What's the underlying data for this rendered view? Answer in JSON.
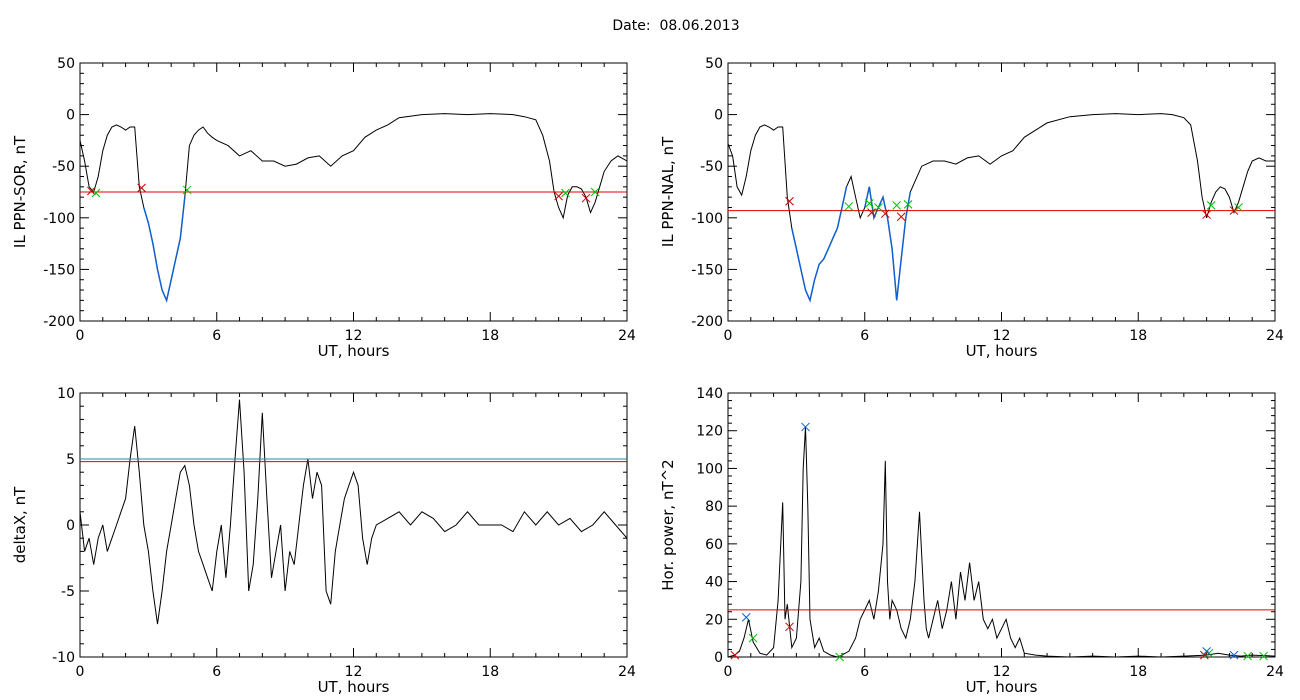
{
  "figure_title": "Date:  08.06.2013",
  "colors": {
    "signal": "#000000",
    "threshold": "#e00000",
    "threshold2": "#2a8aa0",
    "event_segment": "#1060d0",
    "marker_start": "#d00000",
    "marker_end": "#00c000",
    "marker_peak": "#1060d0"
  },
  "chart_data": [
    {
      "type": "line",
      "title": "",
      "xlabel": "UT, hours",
      "ylabel": "IL PPN-SOR, nT",
      "xlim": [
        0,
        24
      ],
      "ylim": [
        -200,
        50
      ],
      "xticks": [
        0,
        6,
        12,
        18,
        24
      ],
      "yticks": [
        -200,
        -150,
        -100,
        -50,
        0,
        50
      ],
      "threshold": -75,
      "series": [
        {
          "x": [
            0,
            0.2,
            0.4,
            0.6,
            0.8,
            1,
            1.2,
            1.4,
            1.6,
            1.8,
            2,
            2.2,
            2.4,
            2.6,
            2.8,
            3,
            3.2,
            3.4,
            3.6,
            3.8,
            4,
            4.2,
            4.4,
            4.6,
            4.8,
            5,
            5.2,
            5.4,
            5.6,
            5.8,
            6,
            6.5,
            7,
            7.5,
            8,
            8.5,
            9,
            9.5,
            10,
            10.5,
            11,
            11.5,
            12,
            12.5,
            13,
            13.5,
            14,
            15,
            16,
            17,
            18,
            19,
            19.5,
            20,
            20.3,
            20.6,
            20.8,
            21,
            21.2,
            21.4,
            21.6,
            21.8,
            22,
            22.2,
            22.4,
            22.6,
            22.8,
            23,
            23.3,
            23.6,
            24
          ],
          "y": [
            -25,
            -45,
            -70,
            -75,
            -60,
            -35,
            -20,
            -12,
            -10,
            -12,
            -15,
            -12,
            -12,
            -70,
            -90,
            -105,
            -125,
            -150,
            -170,
            -180,
            -160,
            -140,
            -120,
            -80,
            -30,
            -20,
            -15,
            -12,
            -18,
            -22,
            -25,
            -30,
            -40,
            -35,
            -45,
            -45,
            -50,
            -48,
            -42,
            -40,
            -50,
            -40,
            -35,
            -22,
            -15,
            -10,
            -3,
            0,
            1,
            0,
            1,
            0,
            -2,
            -5,
            -20,
            -45,
            -75,
            -90,
            -100,
            -78,
            -70,
            -70,
            -72,
            -80,
            -95,
            -85,
            -70,
            -55,
            -45,
            -40,
            -45
          ]
        }
      ],
      "event_x_range": [
        [
          2.7,
          4.7
        ]
      ],
      "markers_start": [
        [
          0.5,
          -74
        ],
        [
          2.7,
          -71
        ],
        [
          21.0,
          -79
        ],
        [
          22.2,
          -81
        ]
      ],
      "markers_end": [
        [
          0.7,
          -76
        ],
        [
          4.7,
          -73
        ],
        [
          21.3,
          -76
        ],
        [
          22.6,
          -75
        ]
      ]
    },
    {
      "type": "line",
      "title": "",
      "xlabel": "UT, hours",
      "ylabel": "IL PPN-NAL, nT",
      "xlim": [
        0,
        24
      ],
      "ylim": [
        -200,
        50
      ],
      "xticks": [
        0,
        6,
        12,
        18,
        24
      ],
      "yticks": [
        -200,
        -150,
        -100,
        -50,
        0,
        50
      ],
      "threshold": -93,
      "series": [
        {
          "x": [
            0,
            0.2,
            0.4,
            0.6,
            0.8,
            1,
            1.2,
            1.4,
            1.6,
            1.8,
            2,
            2.2,
            2.4,
            2.6,
            2.8,
            3,
            3.2,
            3.4,
            3.6,
            3.8,
            4,
            4.2,
            4.4,
            4.6,
            4.8,
            5,
            5.2,
            5.4,
            5.6,
            5.8,
            6,
            6.2,
            6.4,
            6.6,
            6.8,
            7,
            7.2,
            7.4,
            7.6,
            7.8,
            8,
            8.5,
            9,
            9.5,
            10,
            10.5,
            11,
            11.5,
            12,
            12.5,
            13,
            13.5,
            14,
            15,
            16,
            17,
            18,
            19,
            19.5,
            20,
            20.3,
            20.6,
            20.8,
            21,
            21.2,
            21.4,
            21.6,
            21.8,
            22,
            22.2,
            22.4,
            22.6,
            22.8,
            23,
            23.3,
            23.6,
            24
          ],
          "y": [
            -28,
            -40,
            -70,
            -78,
            -60,
            -35,
            -20,
            -12,
            -10,
            -12,
            -15,
            -12,
            -12,
            -80,
            -110,
            -130,
            -150,
            -170,
            -180,
            -160,
            -145,
            -140,
            -130,
            -120,
            -110,
            -90,
            -70,
            -60,
            -80,
            -100,
            -90,
            -70,
            -100,
            -90,
            -80,
            -100,
            -130,
            -180,
            -140,
            -100,
            -75,
            -50,
            -45,
            -45,
            -48,
            -42,
            -40,
            -48,
            -40,
            -35,
            -22,
            -15,
            -8,
            -2,
            0,
            1,
            0,
            1,
            0,
            -3,
            -10,
            -45,
            -80,
            -100,
            -85,
            -75,
            -70,
            -72,
            -80,
            -95,
            -85,
            -70,
            -55,
            -45,
            -42,
            -45,
            -45
          ]
        }
      ],
      "event_x_range": [
        [
          2.7,
          5.3
        ],
        [
          6.0,
          8.0
        ]
      ],
      "markers_start": [
        [
          2.7,
          -84
        ],
        [
          6.3,
          -95
        ],
        [
          6.9,
          -96
        ],
        [
          7.6,
          -99
        ],
        [
          21.0,
          -97
        ],
        [
          22.2,
          -93
        ]
      ],
      "markers_end": [
        [
          5.3,
          -89
        ],
        [
          6.2,
          -86
        ],
        [
          6.6,
          -90
        ],
        [
          7.4,
          -88
        ],
        [
          7.9,
          -87
        ],
        [
          21.2,
          -88
        ],
        [
          22.4,
          -90
        ]
      ]
    },
    {
      "type": "line",
      "title": "",
      "xlabel": "UT, hours",
      "ylabel": "deltaX, nT",
      "xlim": [
        0,
        24
      ],
      "ylim": [
        -10,
        10
      ],
      "xticks": [
        0,
        6,
        12,
        18,
        24
      ],
      "yticks": [
        -10,
        -5,
        0,
        5,
        10
      ],
      "threshold": 4.8,
      "threshold2": 5.0,
      "series": [
        {
          "x": [
            0,
            0.2,
            0.4,
            0.6,
            0.8,
            1,
            1.2,
            1.4,
            1.6,
            1.8,
            2,
            2.2,
            2.4,
            2.6,
            2.8,
            3,
            3.2,
            3.4,
            3.6,
            3.8,
            4,
            4.2,
            4.4,
            4.6,
            4.8,
            5,
            5.2,
            5.4,
            5.6,
            5.8,
            6,
            6.2,
            6.4,
            6.6,
            6.8,
            7,
            7.2,
            7.4,
            7.6,
            7.8,
            8,
            8.2,
            8.4,
            8.6,
            8.8,
            9,
            9.2,
            9.4,
            9.6,
            9.8,
            10,
            10.2,
            10.4,
            10.6,
            10.8,
            11,
            11.2,
            11.4,
            11.6,
            11.8,
            12,
            12.2,
            12.4,
            12.6,
            12.8,
            13,
            13.5,
            14,
            14.5,
            15,
            15.5,
            16,
            16.5,
            17,
            17.5,
            18,
            18.5,
            19,
            19.5,
            20,
            20.5,
            21,
            21.5,
            22,
            22.5,
            23,
            23.5,
            24
          ],
          "y": [
            1,
            -2,
            -1,
            -3,
            -1,
            0,
            -2,
            -1,
            0,
            1,
            2,
            5,
            7.5,
            4,
            0,
            -2,
            -5,
            -7.5,
            -5,
            -2,
            0,
            2,
            4,
            4.5,
            3,
            0,
            -2,
            -3,
            -4,
            -5,
            -2,
            0,
            -4,
            0,
            5,
            9.5,
            4,
            -5,
            -3,
            2,
            8.5,
            2,
            -4,
            -2,
            0,
            -5,
            -2,
            -3,
            0,
            3,
            5,
            2,
            4,
            3,
            -5,
            -6,
            -2,
            0,
            2,
            3,
            4,
            3,
            -1,
            -3,
            -1,
            0,
            0.5,
            1,
            0,
            1,
            0.5,
            -0.5,
            0,
            1,
            0,
            0,
            0,
            -0.5,
            1,
            0,
            1,
            0,
            0.5,
            -0.5,
            0,
            1,
            0,
            -1
          ]
        }
      ]
    },
    {
      "type": "line",
      "title": "",
      "xlabel": "UT, hours",
      "ylabel": "Hor. power, nT^2",
      "xlim": [
        0,
        24
      ],
      "ylim": [
        0,
        140
      ],
      "xticks": [
        0,
        6,
        12,
        18,
        24
      ],
      "yticks": [
        0,
        20,
        40,
        60,
        80,
        100,
        120,
        140
      ],
      "threshold": 25,
      "series": [
        {
          "x": [
            0,
            0.3,
            0.5,
            0.7,
            0.9,
            1.1,
            1.4,
            1.7,
            2,
            2.2,
            2.4,
            2.5,
            2.6,
            2.8,
            3,
            3.2,
            3.3,
            3.4,
            3.5,
            3.6,
            3.8,
            4,
            4.2,
            4.5,
            4.8,
            5,
            5.3,
            5.6,
            5.8,
            6,
            6.2,
            6.4,
            6.6,
            6.8,
            6.9,
            7,
            7.1,
            7.2,
            7.4,
            7.6,
            7.8,
            8,
            8.2,
            8.4,
            8.6,
            8.7,
            8.8,
            9,
            9.2,
            9.4,
            9.6,
            9.8,
            10,
            10.2,
            10.4,
            10.6,
            10.8,
            11,
            11.2,
            11.4,
            11.6,
            11.8,
            12,
            12.2,
            12.4,
            12.6,
            12.8,
            13,
            13.5,
            14,
            15,
            16,
            17,
            18,
            19,
            20,
            21,
            21.5,
            22,
            22.5,
            23,
            24
          ],
          "y": [
            0,
            1,
            3,
            10,
            20,
            8,
            2,
            1,
            5,
            30,
            82,
            20,
            28,
            5,
            10,
            40,
            100,
            122,
            80,
            20,
            5,
            10,
            3,
            1,
            0,
            1,
            3,
            10,
            20,
            25,
            30,
            20,
            35,
            60,
            104,
            40,
            20,
            30,
            25,
            15,
            10,
            20,
            40,
            77,
            30,
            15,
            10,
            20,
            30,
            15,
            25,
            40,
            20,
            45,
            30,
            50,
            30,
            40,
            20,
            15,
            20,
            10,
            15,
            20,
            10,
            5,
            10,
            2,
            1,
            0.5,
            0,
            0.5,
            0,
            0.5,
            0,
            0.5,
            1,
            2,
            1,
            0.5,
            1,
            0.5
          ]
        }
      ],
      "markers_start": [
        [
          0.3,
          1
        ],
        [
          2.7,
          16
        ],
        [
          20.9,
          1
        ]
      ],
      "markers_end": [
        [
          1.1,
          10
        ],
        [
          4.9,
          0
        ],
        [
          21.1,
          2
        ],
        [
          22.8,
          0.5
        ],
        [
          23.5,
          0.5
        ]
      ],
      "markers_peak": [
        [
          0.8,
          21
        ],
        [
          3.4,
          122
        ],
        [
          21.0,
          3
        ],
        [
          22.2,
          1
        ]
      ]
    }
  ]
}
